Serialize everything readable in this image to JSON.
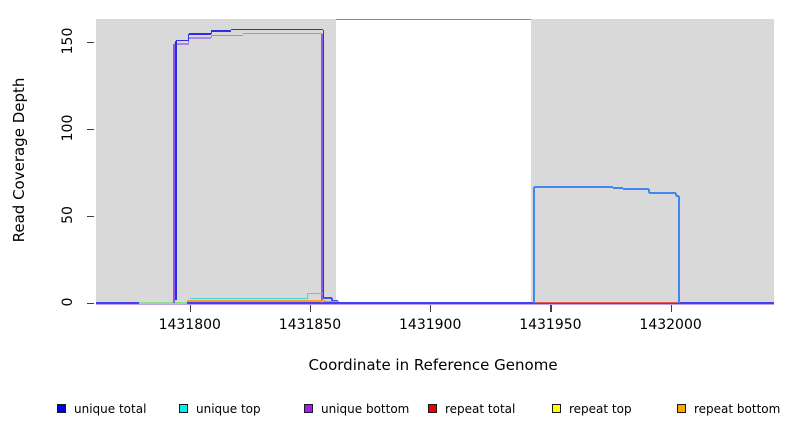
{
  "page": {
    "x_axis_title": "Coordinate in Reference Genome",
    "y_axis_title": "Read Coverage Depth"
  },
  "legend": {
    "items": [
      {
        "label": "unique total",
        "color": "#0000ee"
      },
      {
        "label": "unique top",
        "color": "#00eeee"
      },
      {
        "label": "unique bottom",
        "color": "#a020f0"
      },
      {
        "label": "repeat total",
        "color": "#ee0000"
      },
      {
        "label": "repeat top",
        "color": "#ffff00"
      },
      {
        "label": "repeat bottom",
        "color": "#ffa500"
      }
    ]
  },
  "chart_data": {
    "type": "line",
    "title": "",
    "xlabel": "Coordinate in Reference Genome",
    "ylabel": "Read Coverage Depth",
    "x_ticks": [
      {
        "value": 1431800,
        "label": "1431800"
      },
      {
        "value": 1431850,
        "label": "1431850"
      },
      {
        "value": 1431900,
        "label": "1431900"
      },
      {
        "value": 1431950,
        "label": "1431950"
      },
      {
        "value": 1432000,
        "label": "1432000"
      }
    ],
    "y_ticks": [
      {
        "value": 0,
        "label": "0"
      },
      {
        "value": 50,
        "label": "50"
      },
      {
        "value": 100,
        "label": "100"
      },
      {
        "value": 150,
        "label": "150"
      }
    ],
    "x_min": 1431761,
    "x_max": 1432043,
    "y_min": 0,
    "y_max": 163.4,
    "grid": false,
    "legend_position": "bottom",
    "shade_color": "#d9d9d9",
    "shaded_regions": [
      {
        "x1": 1431761,
        "x2": 1431861
      },
      {
        "x1": 1431942,
        "x2": 1432043
      }
    ],
    "top_marker": {
      "x1": 1431861,
      "x2": 1431942,
      "value": 163,
      "color": "#8c8c8c"
    },
    "series": [
      {
        "name": "unique total",
        "color": "#0000ee",
        "visible_steps": [
          [
            1431793,
            1431800,
            151
          ],
          [
            1431800,
            1431810,
            154.5
          ],
          [
            1431810,
            1431817,
            156.5
          ],
          [
            1431817,
            1431856,
            157
          ],
          [
            1431856,
            1431859,
            3
          ],
          [
            1431859,
            1431862,
            1.5
          ],
          [
            1431862,
            1431943,
            0
          ],
          [
            1431943,
            1431976,
            67
          ],
          [
            1431976,
            1431980,
            66.3
          ],
          [
            1431980,
            1431991,
            65.5
          ],
          [
            1431991,
            1432002,
            63.4
          ],
          [
            1432002,
            1432004,
            61.6
          ],
          [
            1432004,
            1432043,
            0
          ]
        ]
      },
      {
        "name": "unique top",
        "color": "#00eeee",
        "visible_steps": [
          [
            1431800,
            1431849,
            2.5
          ],
          [
            1431849,
            1431856,
            5.5
          ],
          [
            1431856,
            1432043,
            0
          ]
        ]
      },
      {
        "name": "unique bottom",
        "color": "#a020f0",
        "visible_steps": [
          [
            1431793,
            1431800,
            149
          ],
          [
            1431800,
            1431810,
            152.5
          ],
          [
            1431810,
            1431822,
            154
          ],
          [
            1431822,
            1431855,
            155
          ],
          [
            1431855,
            1432043,
            0
          ]
        ]
      },
      {
        "name": "repeat total",
        "color": "#ee0000",
        "visible_steps": [
          [
            1431855,
            1431862,
            0.8
          ],
          [
            1431943,
            1432004,
            0.5
          ]
        ]
      },
      {
        "name": "repeat top",
        "color": "#ffff00",
        "visible_steps": [
          [
            1431779,
            1431799,
            0
          ]
        ]
      },
      {
        "name": "repeat bottom",
        "color": "#ffa500",
        "visible_steps": [
          [
            1431799,
            1431857,
            1
          ]
        ]
      }
    ],
    "render_segments": [
      {
        "x1": 1431861,
        "x2": 1431942,
        "v": 163,
        "c": "#8c8c8c",
        "w": 1.5
      },
      {
        "x1": 1431761,
        "x2": 1432043,
        "v": -0.9,
        "c": "#b9a0f2",
        "w": 1.6
      },
      {
        "x1": 1431761,
        "x2": 1432043,
        "v": 0.15,
        "c": "#4a3df0",
        "w": 1.6
      },
      {
        "x1": 1431779,
        "x2": 1431799,
        "v": 0.1,
        "c": "#8ee08e",
        "w": 1.6
      },
      {
        "x": 1431793.4,
        "v1": 0,
        "v2": 149,
        "c": "#8a5ae8",
        "w": 1.6
      },
      {
        "x1": 1431793.4,
        "x2": 1431799.5,
        "v": 149,
        "c": "#b085ea",
        "w": 1.4
      },
      {
        "x": 1431799.5,
        "v1": 149,
        "v2": 152.5,
        "c": "#b085ea",
        "w": 1.4
      },
      {
        "x1": 1431799.5,
        "x2": 1431809,
        "v": 152.5,
        "c": "#b085ea",
        "w": 1.4
      },
      {
        "x": 1431809,
        "v1": 152.5,
        "v2": 154,
        "c": "#b085ea",
        "w": 1.4
      },
      {
        "x1": 1431809,
        "x2": 1431822,
        "v": 154,
        "c": "#b085ea",
        "w": 1.4
      },
      {
        "x1": 1431822,
        "x2": 1431855,
        "v": 155,
        "c": "#b085ea",
        "w": 1.4
      },
      {
        "x": 1431855,
        "v1": 0,
        "v2": 155,
        "c": "#8a5ae8",
        "w": 1.6
      },
      {
        "x": 1431794.3,
        "v1": 2,
        "v2": 151,
        "c": "#2e2ee4",
        "w": 1.8
      },
      {
        "x1": 1431794.3,
        "x2": 1431799.5,
        "v": 151,
        "c": "#2e2ee4",
        "w": 1.8
      },
      {
        "x": 1431799.5,
        "v1": 151,
        "v2": 154.7,
        "c": "#2e2ee4",
        "w": 1.8
      },
      {
        "x1": 1431799.5,
        "x2": 1431809,
        "v": 154.7,
        "c": "#2e2ee4",
        "w": 1.8
      },
      {
        "x": 1431809,
        "v1": 154.7,
        "v2": 156.4,
        "c": "#2e2ee4",
        "w": 1.8
      },
      {
        "x1": 1431809,
        "x2": 1431817,
        "v": 156.4,
        "c": "#2e2ee4",
        "w": 1.8
      },
      {
        "x1": 1431817,
        "x2": 1431855.6,
        "v": 157.3,
        "c": "#2e2ee4",
        "w": 1.8
      },
      {
        "x": 1431855.6,
        "v1": 2.9,
        "v2": 157.3,
        "c": "#2e2ee4",
        "w": 1.8
      },
      {
        "x1": 1431855.6,
        "x2": 1431859.2,
        "v": 2.9,
        "c": "#3a55ee",
        "w": 1.6
      },
      {
        "x": 1431859.2,
        "v1": 1.4,
        "v2": 2.9,
        "c": "#3a55ee",
        "w": 1.6
      },
      {
        "x1": 1431859.2,
        "x2": 1431861.5,
        "v": 1.4,
        "c": "#3a55ee",
        "w": 1.6
      },
      {
        "x1": 1431800,
        "x2": 1431849,
        "v": 2.5,
        "c": "#38dce8",
        "w": 1.4
      },
      {
        "x": 1431849,
        "v1": 2.5,
        "v2": 5.6,
        "c": "#38dce8",
        "w": 1.4
      },
      {
        "x1": 1431849,
        "x2": 1431855.6,
        "v": 5.6,
        "c": "#38dce8",
        "w": 1.4
      },
      {
        "x1": 1431855,
        "x2": 1431862,
        "v": 0.8,
        "c": "#f27888",
        "w": 1.3
      },
      {
        "x1": 1431799,
        "x2": 1431856.5,
        "v": 1.1,
        "c": "#ff9d1e",
        "w": 1.7
      },
      {
        "x1": 1431943,
        "x2": 1432003.6,
        "v": 0.5,
        "c": "#e85a5a",
        "w": 1.2
      },
      {
        "x": 1431943,
        "v1": 0,
        "v2": 67,
        "c": "#4286f0",
        "w": 2
      },
      {
        "x1": 1431943,
        "x2": 1431976,
        "v": 67,
        "c": "#4286f0",
        "w": 2
      },
      {
        "x": 1431976,
        "v1": 66.3,
        "v2": 67,
        "c": "#4286f0",
        "w": 2
      },
      {
        "x1": 1431976,
        "x2": 1431980,
        "v": 66.3,
        "c": "#4286f0",
        "w": 2
      },
      {
        "x": 1431980,
        "v1": 65.5,
        "v2": 66.3,
        "c": "#4286f0",
        "w": 2
      },
      {
        "x1": 1431980,
        "x2": 1431991,
        "v": 65.5,
        "c": "#4286f0",
        "w": 2
      },
      {
        "x": 1431991,
        "v1": 63.4,
        "v2": 65.5,
        "c": "#4286f0",
        "w": 2
      },
      {
        "x1": 1431991,
        "x2": 1432002.3,
        "v": 63.4,
        "c": "#4286f0",
        "w": 2
      },
      {
        "x": 1432002.3,
        "v1": 61.6,
        "v2": 63.4,
        "c": "#4286f0",
        "w": 2
      },
      {
        "x1": 1432002.3,
        "x2": 1432003.6,
        "v": 61.6,
        "c": "#4286f0",
        "w": 2
      },
      {
        "x": 1432003.6,
        "v1": 0,
        "v2": 61.6,
        "c": "#4286f0",
        "w": 2
      }
    ]
  }
}
